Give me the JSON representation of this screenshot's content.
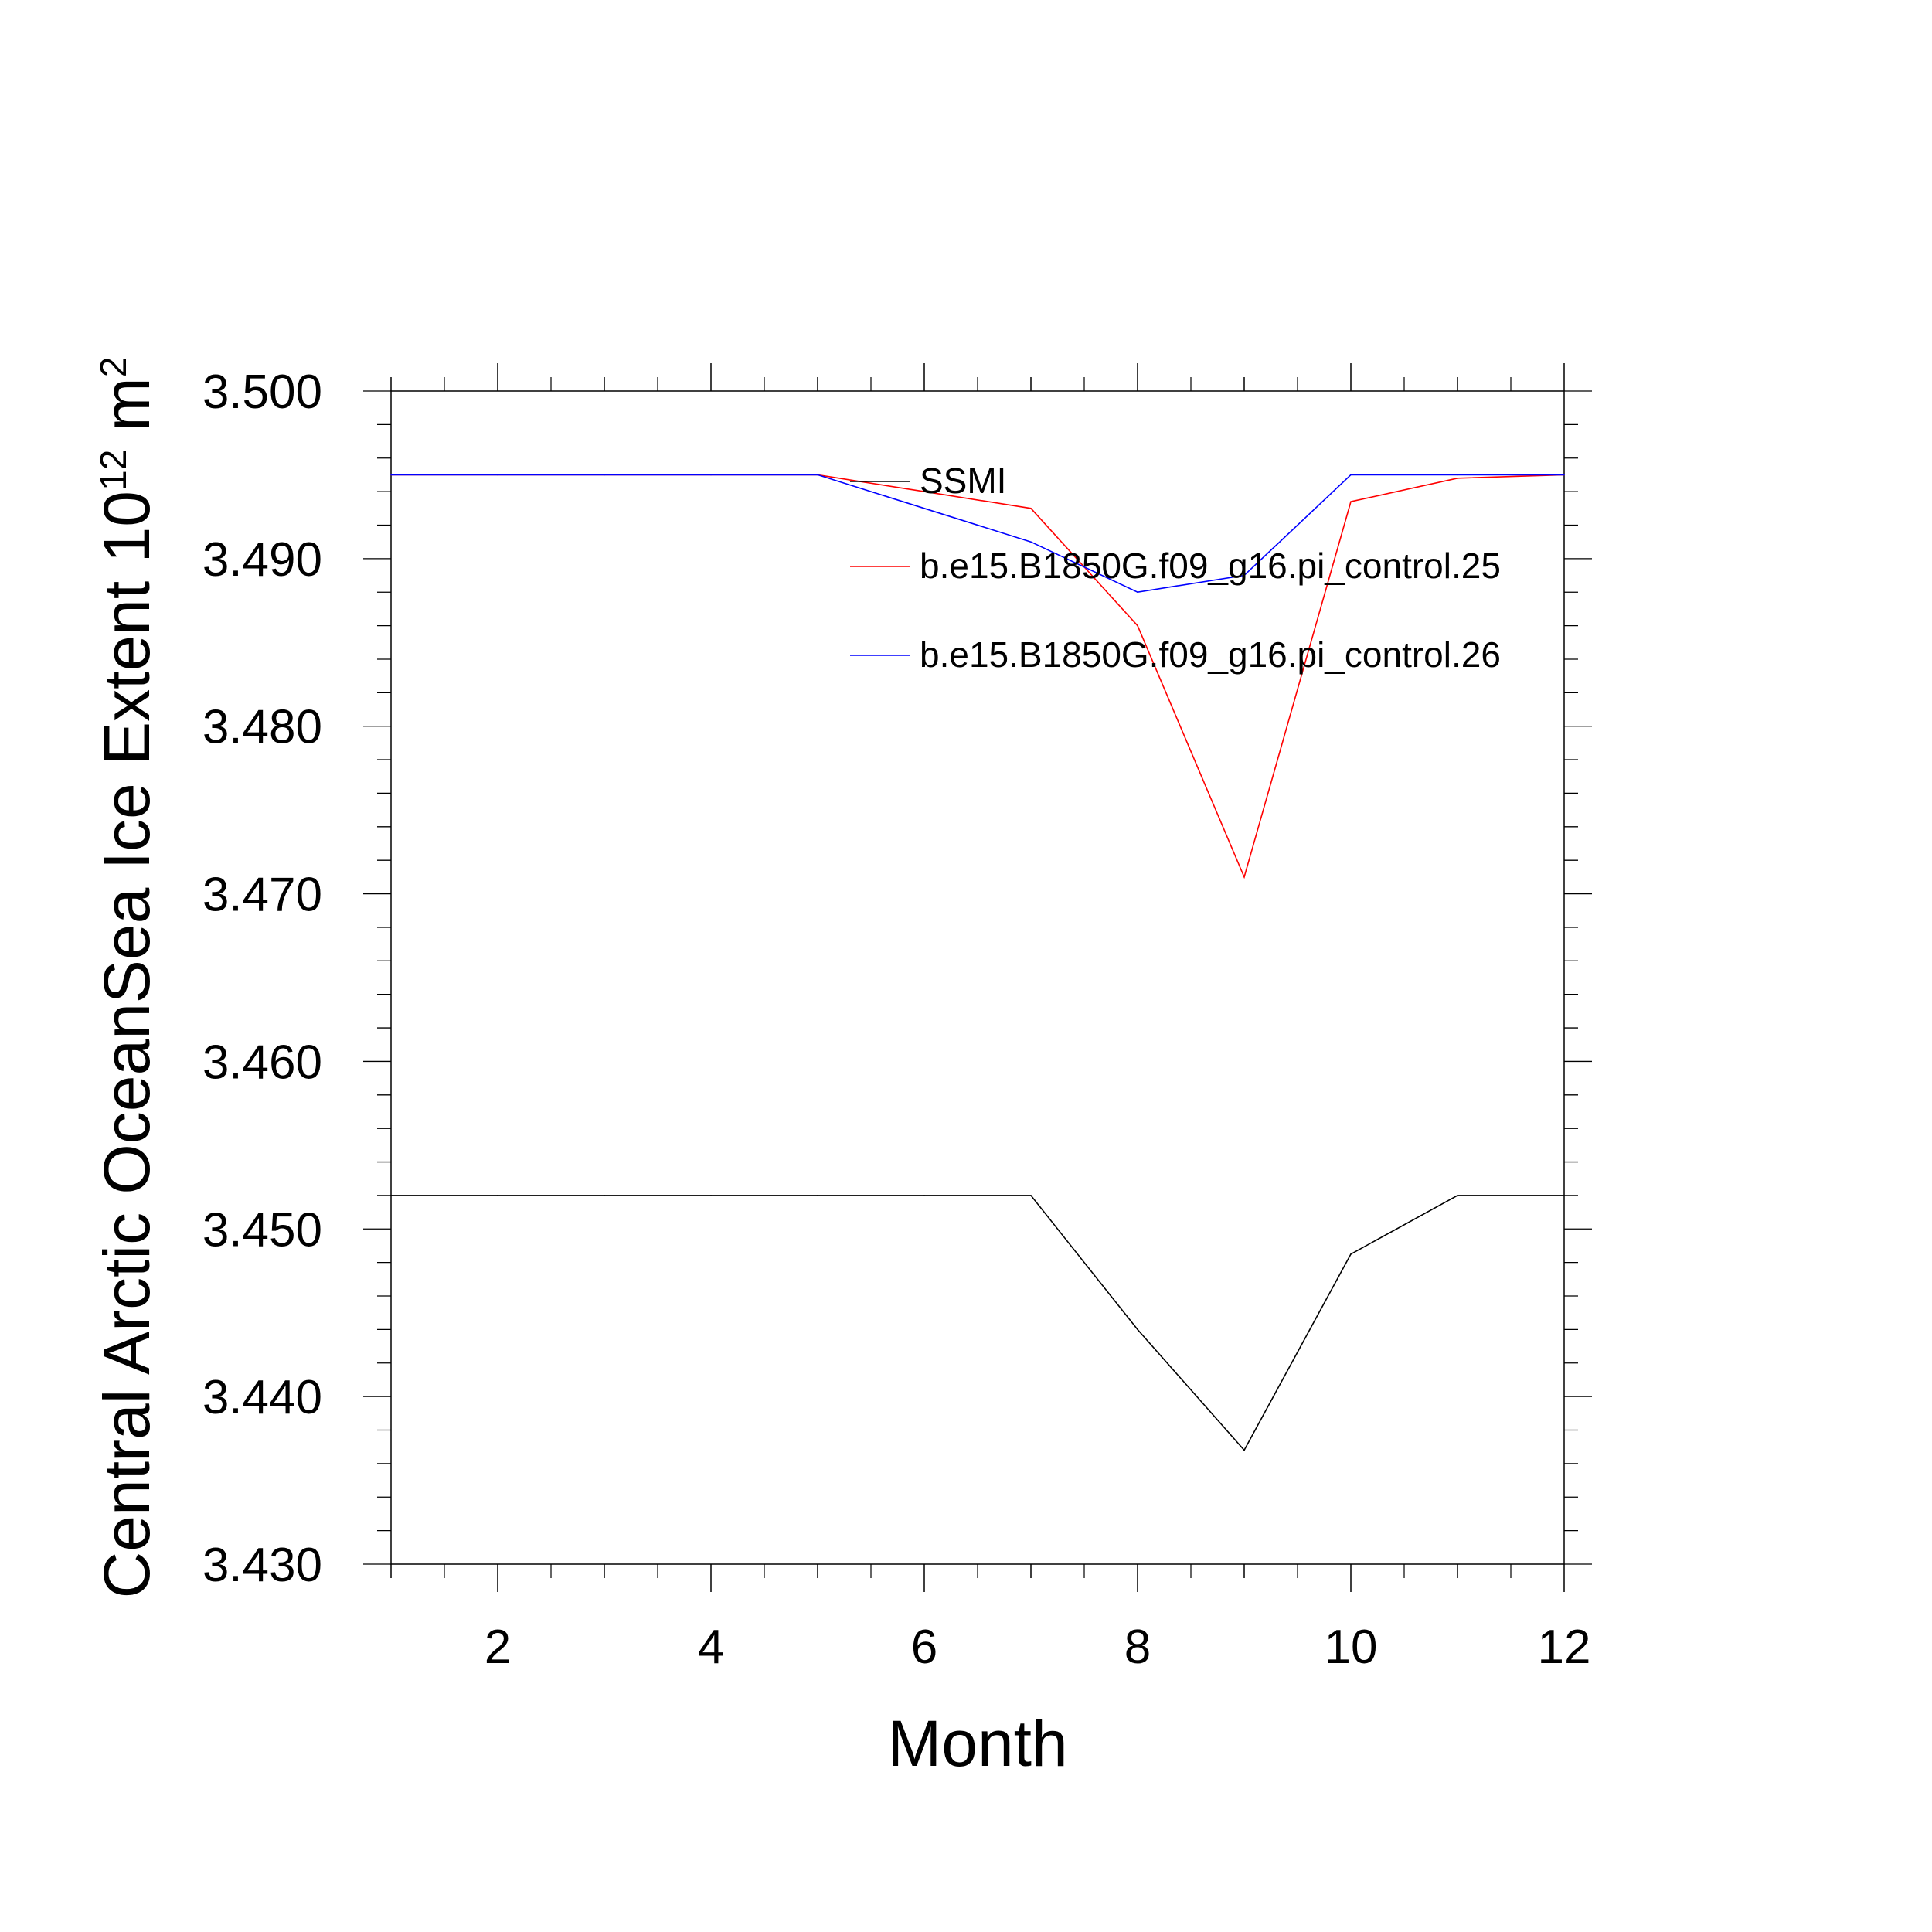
{
  "chart_data": {
    "type": "line",
    "xlabel": "Month",
    "ylabel": {
      "text": "Central Arctic OceanSea Ice Extent 10",
      "sup1": "12",
      "mid": " m",
      "sup2": "2"
    },
    "xlim": [
      1,
      12
    ],
    "ylim": [
      3.43,
      3.5
    ],
    "x_ticks": [
      2,
      4,
      6,
      8,
      10,
      12
    ],
    "x_tick_labels": [
      "2",
      "4",
      "6",
      "8",
      "10",
      "12"
    ],
    "y_ticks": [
      3.43,
      3.44,
      3.45,
      3.46,
      3.47,
      3.48,
      3.49,
      3.5
    ],
    "y_tick_labels": [
      "3.430",
      "3.440",
      "3.450",
      "3.460",
      "3.470",
      "3.480",
      "3.490",
      "3.500"
    ],
    "legend_position": "top-right",
    "series": [
      {
        "name": "SSMI",
        "color": "#000000",
        "x": [
          1,
          2,
          3,
          4,
          5,
          6,
          7,
          8,
          9,
          10,
          11,
          12
        ],
        "values": [
          3.452,
          3.452,
          3.452,
          3.452,
          3.452,
          3.452,
          3.452,
          3.444,
          3.4368,
          3.4485,
          3.452,
          3.452
        ]
      },
      {
        "name": "b.e15.B1850G.f09_g16.pi_control.25",
        "color": "#ff0000",
        "x": [
          1,
          2,
          3,
          4,
          5,
          6,
          7,
          8,
          9,
          10,
          11,
          12
        ],
        "values": [
          3.495,
          3.495,
          3.495,
          3.495,
          3.495,
          3.494,
          3.493,
          3.486,
          3.471,
          3.4934,
          3.4948,
          3.495
        ]
      },
      {
        "name": "b.e15.B1850G.f09_g16.pi_control.26",
        "color": "#0000ff",
        "x": [
          1,
          2,
          3,
          4,
          5,
          6,
          7,
          8,
          9,
          10,
          11,
          12
        ],
        "values": [
          3.495,
          3.495,
          3.495,
          3.495,
          3.495,
          3.493,
          3.491,
          3.488,
          3.489,
          3.495,
          3.495,
          3.495
        ]
      }
    ]
  }
}
